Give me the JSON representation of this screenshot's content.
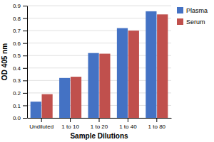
{
  "chart_data": {
    "type": "bar",
    "xlabel": "Sample Dilutions",
    "ylabel": "OD 405 nm",
    "categories": [
      "Undiluted",
      "1 to 10",
      "1 to 20",
      "1 to 40",
      "1 to 80"
    ],
    "series": [
      {
        "name": "Plasma",
        "color": "#4472C4",
        "values": [
          0.13,
          0.32,
          0.52,
          0.72,
          0.855
        ]
      },
      {
        "name": "Serum",
        "color": "#C0504D",
        "values": [
          0.19,
          0.33,
          0.515,
          0.7,
          0.83
        ]
      }
    ],
    "ylim": [
      0,
      0.9
    ],
    "yticks": [
      {
        "value": 0.0,
        "label": "0.0"
      },
      0.1,
      0.2,
      0.3,
      0.4,
      0.5,
      0.6,
      0.7,
      0.8,
      0.9
    ],
    "grid": true,
    "legend": "right"
  }
}
